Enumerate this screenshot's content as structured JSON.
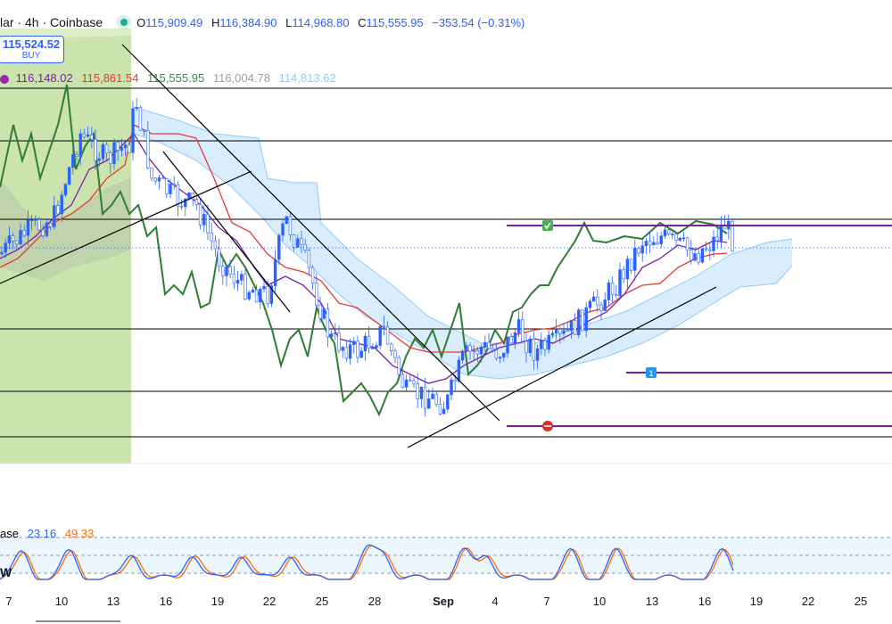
{
  "header": {
    "title": "lar · 4h · Coinbase",
    "open_label": "O",
    "open": "115,909.49",
    "high_label": "H",
    "high": "116,384.90",
    "low_label": "L",
    "low": "114,968.80",
    "close_label": "C",
    "close": "115,555.95",
    "change": "−353.54 (−0.31%)"
  },
  "buy_box": {
    "price": "115,524.52",
    "label": "BUY"
  },
  "ichimoku": {
    "values": [
      "116,148.02",
      "115,861.54",
      "115,555.95",
      "116,004.78",
      "114,813.62"
    ],
    "colors": [
      "#7b1fa2",
      "#e53935",
      "#388e3c",
      "#9e9e9e",
      "#90caf9"
    ],
    "icon": "indicator-settings-icon"
  },
  "stoch": {
    "name": "ase",
    "k": "23.16",
    "d": "49.33",
    "k_color": "#2962ff",
    "d_color": "#ff6d00"
  },
  "stoch_w": "W",
  "x_axis": [
    "7",
    "10",
    "13",
    "16",
    "19",
    "22",
    "25",
    "28",
    "Sep",
    "4",
    "7",
    "10",
    "13",
    "16",
    "19",
    "22",
    "25"
  ],
  "trade_markers": {
    "target": "check-icon",
    "entry": "1",
    "stop": "minus-icon"
  },
  "colors": {
    "up": "#2962ff",
    "down": "#2962ff",
    "lagging": "#2e7d32",
    "base": "#e53935",
    "conversion": "#7b1fa2",
    "cloud": "#bbdefb",
    "zone": "#c5e1a5",
    "trade": "#7b1fa2"
  }
}
